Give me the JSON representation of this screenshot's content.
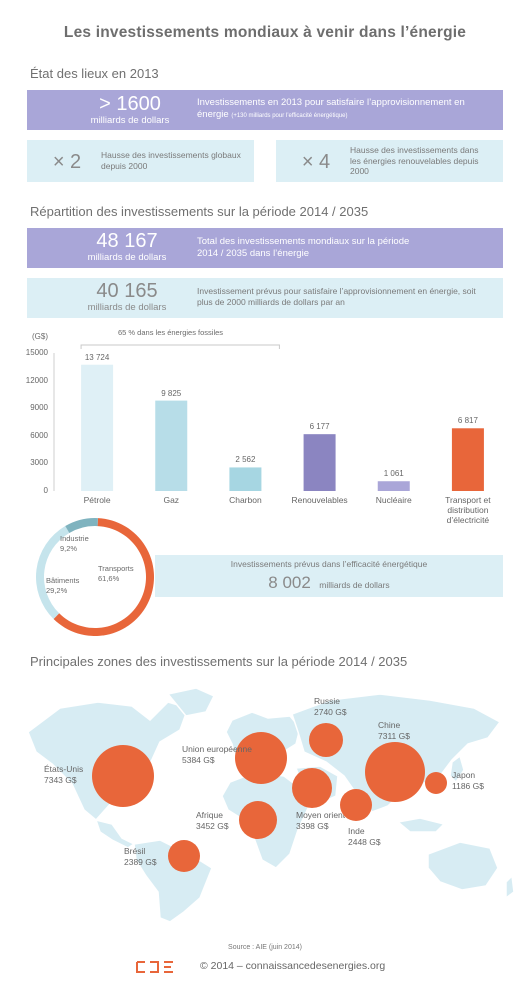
{
  "title": "Les investissements mondiaux à venir dans l’énergie",
  "section1": {
    "heading": "État des lieux en 2013",
    "total_value": "> 1600",
    "total_unit": "milliards de dollars",
    "total_desc": "Investissements en 2013 pour satisfaire l’approvisionnement en énergie",
    "total_note": "(+130 milliards pour l’efficacité énergétique)",
    "mult1_value": "× 2",
    "mult1_desc": "Hausse des investissements globaux depuis 2000",
    "mult2_value": "× 4",
    "mult2_desc": "Hausse des investissements dans les énergies renouvelables depuis 2000"
  },
  "section2": {
    "heading": "Répartition des investissements sur la période 2014 / 2035",
    "total_value": "48 167",
    "total_unit": "milliards de dollars",
    "total_desc": "Total des investissements mondiaux sur la période 2014 / 2035  dans l’énergie",
    "supply_value": "40 165",
    "supply_unit": "milliards de dollars",
    "supply_desc": "Investissement prévus pour satisfaire l’approvisionnement en énergie, soit plus de 2000 milliards de dollars par an"
  },
  "chart_data": [
    {
      "type": "bar",
      "ylabel": "(G$)",
      "ylim": [
        0,
        15000
      ],
      "yticks": [
        "15000",
        "12000",
        "9000",
        "6000",
        "3000",
        "0"
      ],
      "categories": [
        "Pétrole",
        "Gaz",
        "Charbon",
        "Renouvelables",
        "Nucléaire",
        "Transport et distribution d’électricité"
      ],
      "values": [
        13724,
        9825,
        2562,
        6177,
        1061,
        6817
      ],
      "value_labels": [
        "13 724",
        "9 825",
        "2 562",
        "6 177",
        "1 061",
        "6 817"
      ],
      "colors": [
        "#dff0f6",
        "#b7dde8",
        "#a6d6e2",
        "#8b85c1",
        "#aaa6d8",
        "#e8663a"
      ],
      "annotation": "65 % dans les énergies fossiles"
    },
    {
      "type": "pie",
      "slices": [
        {
          "name": "Transports",
          "value": 61.6,
          "label": "61,6%",
          "color": "#e8663a"
        },
        {
          "name": "Bâtiments",
          "value": 29.2,
          "label": "29,2%",
          "color": "#c5e4ec"
        },
        {
          "name": "Industrie",
          "value": 9.2,
          "label": "9,2%",
          "color": "#7fb3bf"
        }
      ]
    }
  ],
  "efficiency": {
    "desc": "Investissements prévus dans l’efficacité énergétique",
    "value": "8 002",
    "unit": "milliards de dollars"
  },
  "section3": {
    "heading": "Principales zones des investissements sur la période 2014 / 2035",
    "zones": [
      {
        "name": "États-Unis",
        "value": "7343 G$"
      },
      {
        "name": "Union européenne",
        "value": "5384 G$"
      },
      {
        "name": "Russie",
        "value": "2740 G$"
      },
      {
        "name": "Chine",
        "value": "7311 G$"
      },
      {
        "name": "Japon",
        "value": "1186 G$"
      },
      {
        "name": "Afrique",
        "value": "3452 G$"
      },
      {
        "name": "Moyen orient",
        "value": "3398 G$"
      },
      {
        "name": "Inde",
        "value": "2448 G$"
      },
      {
        "name": "Brésil",
        "value": "2389 G$"
      }
    ]
  },
  "footer": {
    "source": "Source : AIE (juin 2014)",
    "copyright": "© 2014 – connaissancedesenergies.org"
  },
  "colors": {
    "purple": "#a9a6d8",
    "lightblue": "#dceff5",
    "orange": "#e8663a",
    "map": "#d7ecf3"
  }
}
